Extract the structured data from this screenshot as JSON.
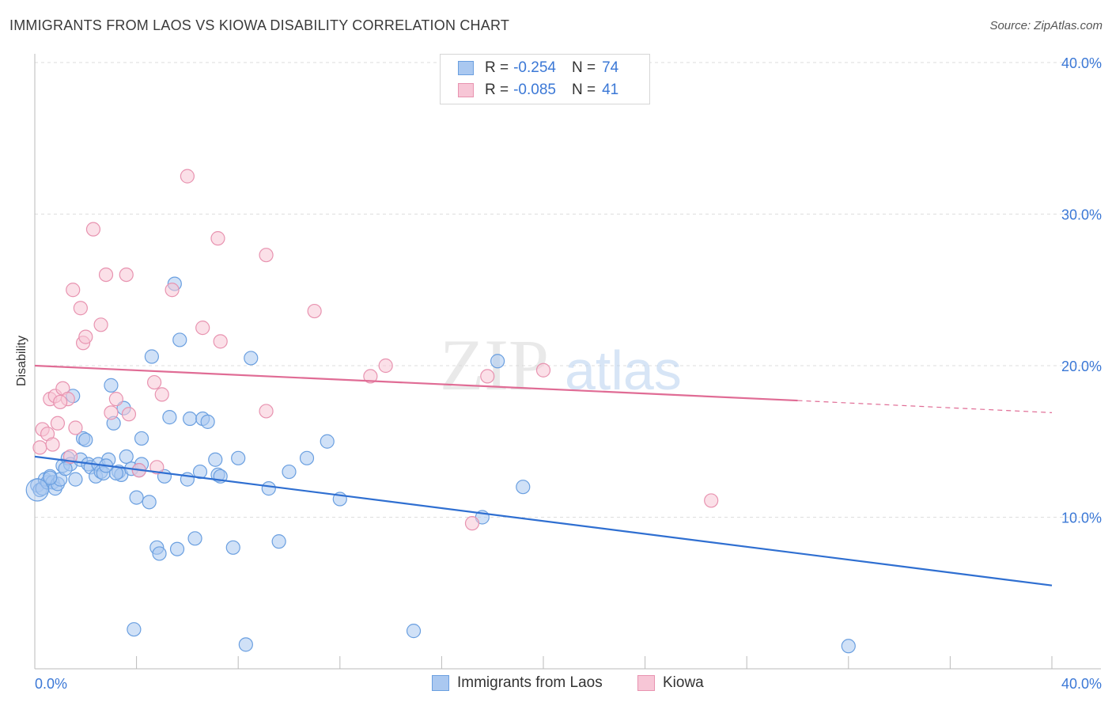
{
  "title": "IMMIGRANTS FROM LAOS VS KIOWA DISABILITY CORRELATION CHART",
  "source": "Source: ZipAtlas.com",
  "watermark": {
    "zip": "ZIP",
    "atlas": "atlas"
  },
  "legend": {
    "rows": [
      {
        "r_label": "R =",
        "r_value": "-0.254",
        "n_label": "N =",
        "n_value": "74",
        "color": "#aac8f0",
        "border": "#6a9fe0"
      },
      {
        "r_label": "R =",
        "r_value": "-0.085",
        "n_label": "N =",
        "n_value": "41",
        "color": "#f7c6d6",
        "border": "#e893b0"
      }
    ]
  },
  "bottom_legend": [
    {
      "label": "Immigrants from Laos",
      "color": "#aac8f0",
      "border": "#6a9fe0"
    },
    {
      "label": "Kiowa",
      "color": "#f7c6d6",
      "border": "#e893b0"
    }
  ],
  "chart_data": {
    "type": "scatter",
    "title": "IMMIGRANTS FROM LAOS VS KIOWA DISABILITY CORRELATION CHART",
    "xlabel": "",
    "ylabel": "Disability",
    "xlim": [
      0,
      40
    ],
    "ylim": [
      0,
      40
    ],
    "x_tick_labels": [
      "0.0%",
      "40.0%"
    ],
    "y_ticks": [
      10,
      20,
      30,
      40
    ],
    "y_tick_labels": [
      "10.0%",
      "20.0%",
      "30.0%",
      "40.0%"
    ],
    "grid": true,
    "legend_position": "top-center",
    "series": [
      {
        "name": "Immigrants from Laos",
        "color": "#6a9fe0",
        "fill": "#aac8f0",
        "line_color": "#2f6fd1",
        "trend": {
          "x": [
            0,
            40
          ],
          "y": [
            14.0,
            5.5
          ]
        },
        "points": [
          [
            0.1,
            12.1
          ],
          [
            0.2,
            11.8
          ],
          [
            0.3,
            11.9
          ],
          [
            0.4,
            12.5
          ],
          [
            0.5,
            12.3
          ],
          [
            0.6,
            12.7
          ],
          [
            0.7,
            12.3
          ],
          [
            0.8,
            11.9
          ],
          [
            0.9,
            12.2
          ],
          [
            1.1,
            13.4
          ],
          [
            1.3,
            13.9
          ],
          [
            1.4,
            13.5
          ],
          [
            1.5,
            18.0
          ],
          [
            1.6,
            12.5
          ],
          [
            1.8,
            13.8
          ],
          [
            1.9,
            15.2
          ],
          [
            2.1,
            13.5
          ],
          [
            2.2,
            13.3
          ],
          [
            2.4,
            12.7
          ],
          [
            2.5,
            13.5
          ],
          [
            2.6,
            13.0
          ],
          [
            2.7,
            12.9
          ],
          [
            2.9,
            13.8
          ],
          [
            3.0,
            18.7
          ],
          [
            3.1,
            16.2
          ],
          [
            3.3,
            13.0
          ],
          [
            3.4,
            12.8
          ],
          [
            3.5,
            17.2
          ],
          [
            3.6,
            14.0
          ],
          [
            3.8,
            13.2
          ],
          [
            3.9,
            2.6
          ],
          [
            4.0,
            11.3
          ],
          [
            4.2,
            13.5
          ],
          [
            4.2,
            15.2
          ],
          [
            4.5,
            11.0
          ],
          [
            4.6,
            20.6
          ],
          [
            4.8,
            8.0
          ],
          [
            5.1,
            12.7
          ],
          [
            5.3,
            16.6
          ],
          [
            5.6,
            7.9
          ],
          [
            5.7,
            21.7
          ],
          [
            6.0,
            12.5
          ],
          [
            6.1,
            16.5
          ],
          [
            6.3,
            8.6
          ],
          [
            6.6,
            16.5
          ],
          [
            6.8,
            16.3
          ],
          [
            7.1,
            13.8
          ],
          [
            7.2,
            12.8
          ],
          [
            7.8,
            8.0
          ],
          [
            8.0,
            13.9
          ],
          [
            8.3,
            1.6
          ],
          [
            8.5,
            20.5
          ],
          [
            9.6,
            8.4
          ],
          [
            10.7,
            13.9
          ],
          [
            11.5,
            15.0
          ],
          [
            14.9,
            2.5
          ],
          [
            17.6,
            10.0
          ],
          [
            18.2,
            20.3
          ],
          [
            19.2,
            12.0
          ],
          [
            32.0,
            1.5
          ],
          [
            1.0,
            12.5
          ],
          [
            2.0,
            15.1
          ],
          [
            3.2,
            12.9
          ],
          [
            4.1,
            13.1
          ],
          [
            5.5,
            25.4
          ],
          [
            6.5,
            13.0
          ],
          [
            0.6,
            12.6
          ],
          [
            1.2,
            13.2
          ],
          [
            2.8,
            13.4
          ],
          [
            4.9,
            7.6
          ],
          [
            7.3,
            12.7
          ],
          [
            9.2,
            11.9
          ],
          [
            10.0,
            13.0
          ],
          [
            12.0,
            11.2
          ]
        ]
      },
      {
        "name": "Kiowa",
        "color": "#e893b0",
        "fill": "#f7c6d6",
        "line_color": "#e06c95",
        "trend": {
          "x": [
            0,
            30
          ],
          "y": [
            20.0,
            17.7
          ]
        },
        "trend_dashed": {
          "x": [
            30,
            40
          ],
          "y": [
            17.7,
            16.9
          ]
        },
        "points": [
          [
            0.2,
            14.6
          ],
          [
            0.3,
            15.8
          ],
          [
            0.5,
            15.5
          ],
          [
            0.6,
            17.8
          ],
          [
            0.7,
            14.8
          ],
          [
            0.8,
            18.0
          ],
          [
            0.9,
            16.2
          ],
          [
            1.1,
            18.5
          ],
          [
            1.3,
            17.8
          ],
          [
            1.4,
            14.0
          ],
          [
            1.6,
            15.9
          ],
          [
            1.8,
            23.8
          ],
          [
            1.9,
            21.5
          ],
          [
            2.0,
            21.9
          ],
          [
            2.3,
            29.0
          ],
          [
            2.6,
            22.7
          ],
          [
            2.8,
            26.0
          ],
          [
            3.0,
            16.9
          ],
          [
            3.2,
            17.8
          ],
          [
            3.6,
            26.0
          ],
          [
            3.7,
            16.8
          ],
          [
            4.1,
            13.1
          ],
          [
            4.7,
            18.9
          ],
          [
            4.8,
            13.3
          ],
          [
            5.0,
            18.1
          ],
          [
            5.4,
            25.0
          ],
          [
            6.0,
            32.5
          ],
          [
            6.6,
            22.5
          ],
          [
            7.2,
            28.4
          ],
          [
            7.3,
            21.6
          ],
          [
            9.1,
            27.3
          ],
          [
            9.1,
            17.0
          ],
          [
            11.0,
            23.6
          ],
          [
            13.2,
            19.3
          ],
          [
            13.8,
            20.0
          ],
          [
            17.2,
            9.6
          ],
          [
            17.8,
            19.3
          ],
          [
            20.0,
            19.7
          ],
          [
            26.6,
            11.1
          ],
          [
            1.5,
            25.0
          ],
          [
            1.0,
            17.6
          ]
        ]
      }
    ]
  }
}
